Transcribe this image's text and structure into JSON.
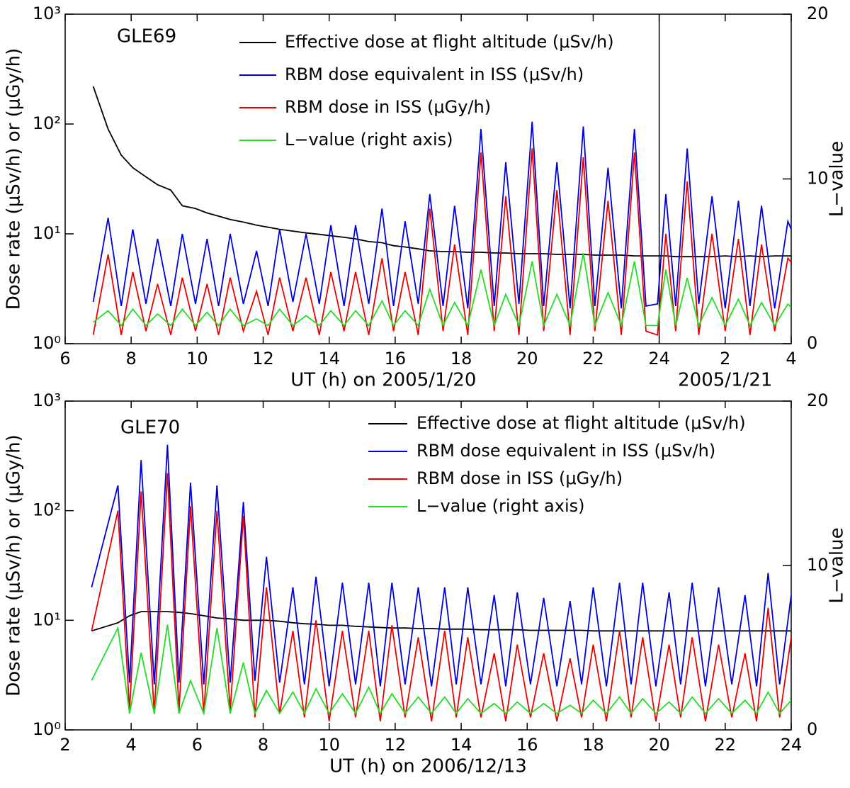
{
  "chart_data": [
    {
      "type": "line",
      "title": "GLE69",
      "xlabel": "UT (h) on 2005/1/20",
      "xlabel2": "2005/1/21",
      "ylabel": "Dose rate (μSv/h) or (μGy/h)",
      "y2label": "L−value",
      "yscale": "log",
      "xlim": [
        6,
        28
      ],
      "ylim": [
        1,
        1000
      ],
      "y2lim": [
        0,
        20
      ],
      "xticks": [
        6,
        8,
        10,
        12,
        14,
        16,
        18,
        20,
        22,
        24,
        {
          "value": 26,
          "label": "2"
        },
        {
          "value": 28,
          "label": "4"
        }
      ],
      "yticks": [
        {
          "value": 1,
          "label": "10⁰"
        },
        {
          "value": 10,
          "label": "10¹"
        },
        {
          "value": 100,
          "label": "10²"
        },
        {
          "value": 1000,
          "label": "10³"
        }
      ],
      "y2ticks": [
        0,
        10,
        20
      ],
      "divider": 24,
      "x": [
        6.85,
        7.3,
        7.7,
        8.05,
        8.45,
        8.8,
        9.2,
        9.55,
        9.95,
        10.3,
        10.65,
        11.0,
        11.4,
        11.8,
        12.15,
        12.5,
        12.9,
        13.3,
        13.7,
        14.05,
        14.45,
        14.8,
        15.2,
        15.6,
        15.95,
        16.3,
        16.7,
        17.05,
        17.45,
        17.8,
        18.2,
        18.6,
        19.0,
        19.35,
        19.75,
        20.15,
        20.5,
        20.9,
        21.3,
        21.7,
        22.05,
        22.45,
        22.85,
        23.25,
        23.6,
        23.95,
        24.2,
        24.5,
        24.85,
        25.2,
        25.6,
        26.0,
        26.4,
        26.75,
        27.1,
        27.5,
        27.9,
        28.0
      ],
      "series": [
        {
          "name": "Effective dose at flight altitude (μSv/h)",
          "color": "#000000",
          "values": [
            220,
            90,
            52,
            40,
            33,
            28,
            25,
            18,
            17,
            15.5,
            14.5,
            13.5,
            12.8,
            12,
            11.5,
            11,
            10.6,
            10.2,
            9.9,
            9.6,
            9.3,
            9.0,
            8.5,
            8.3,
            7.8,
            7.6,
            7.3,
            7.0,
            6.9,
            6.9,
            6.8,
            6.8,
            6.7,
            6.7,
            6.6,
            6.6,
            6.6,
            6.5,
            6.5,
            6.5,
            6.4,
            6.4,
            6.4,
            6.3,
            6.3,
            6.3,
            6.3,
            6.2,
            6.2,
            6.2,
            6.2,
            6.3,
            6.2,
            6.3,
            6.2,
            6.3,
            6.3,
            6.3
          ]
        },
        {
          "name": "RBM dose equivalent in ISS (μSv/h)",
          "color": "#0000dd",
          "values": [
            2.4,
            14,
            2.2,
            11,
            2.3,
            9,
            2.2,
            10,
            2.3,
            9,
            2.2,
            10,
            2.3,
            7,
            2.2,
            11,
            2.4,
            10,
            2.3,
            12,
            2.2,
            12,
            2.3,
            17,
            2.2,
            13,
            2.3,
            23,
            2.2,
            18,
            2.1,
            90,
            2.2,
            45,
            2.3,
            105,
            2.2,
            45,
            2.1,
            95,
            2.2,
            40,
            2.1,
            90,
            2.2,
            2.3,
            23,
            2.2,
            60,
            2.3,
            22,
            2.1,
            20,
            2.2,
            18,
            2.1,
            13,
            11
          ]
        },
        {
          "name": "RBM dose in ISS (μGy/h)",
          "color": "#ee0000",
          "values": [
            1.2,
            6.5,
            1.2,
            4.5,
            1.3,
            3.5,
            1.2,
            4,
            1.3,
            3.5,
            1.2,
            4,
            1.3,
            3,
            1.2,
            4,
            1.3,
            4,
            1.2,
            4.5,
            1.3,
            4.5,
            1.2,
            6,
            1.3,
            4.5,
            1.2,
            17,
            1.3,
            8,
            1.2,
            55,
            1.3,
            22,
            1.2,
            60,
            1.3,
            25,
            1.2,
            50,
            1.3,
            20,
            1.2,
            55,
            1.3,
            1.2,
            10,
            1.3,
            30,
            1.2,
            10,
            1.3,
            9,
            1.2,
            8,
            1.3,
            6,
            5.5
          ]
        },
        {
          "name": "L−value (right axis)",
          "color": "#22dd22",
          "axis": "y2",
          "values": [
            1.3,
            2.0,
            1.1,
            2.1,
            1.1,
            1.8,
            1.1,
            2.1,
            1.1,
            1.9,
            1.1,
            2.1,
            1.1,
            1.5,
            1.1,
            2.1,
            1.1,
            1.7,
            1.1,
            2.0,
            1.1,
            2.0,
            1.1,
            2.6,
            1.1,
            2.0,
            1.1,
            3.3,
            1.1,
            2.5,
            1.1,
            4.5,
            1.1,
            3.0,
            1.1,
            5.0,
            1.1,
            3.0,
            1.1,
            5.5,
            1.1,
            3.1,
            1.1,
            5.0,
            1.1,
            1.1,
            4.5,
            1.1,
            4.0,
            1.1,
            2.8,
            1.1,
            2.7,
            1.1,
            2.5,
            1.1,
            2.4,
            2.2
          ]
        }
      ]
    },
    {
      "type": "line",
      "title": "GLE70",
      "xlabel": "UT (h) on 2006/12/13",
      "ylabel": "Dose rate (μSv/h) or (μGy/h)",
      "y2label": "L−value",
      "yscale": "log",
      "xlim": [
        2,
        24
      ],
      "ylim": [
        1,
        1000
      ],
      "y2lim": [
        0,
        20
      ],
      "xticks": [
        2,
        4,
        6,
        8,
        10,
        12,
        14,
        16,
        18,
        20,
        22,
        24
      ],
      "yticks": [
        {
          "value": 1,
          "label": "10⁰"
        },
        {
          "value": 10,
          "label": "10¹"
        },
        {
          "value": 100,
          "label": "10²"
        },
        {
          "value": 1000,
          "label": "10³"
        }
      ],
      "y2ticks": [
        0,
        10,
        20
      ],
      "x": [
        2.8,
        3.6,
        3.95,
        4.3,
        4.7,
        5.1,
        5.45,
        5.8,
        6.2,
        6.6,
        7.0,
        7.4,
        7.75,
        8.1,
        8.5,
        8.9,
        9.25,
        9.6,
        10.0,
        10.4,
        10.8,
        11.2,
        11.55,
        11.9,
        12.3,
        12.7,
        13.1,
        13.5,
        13.85,
        14.2,
        14.6,
        15.0,
        15.35,
        15.7,
        16.1,
        16.5,
        16.9,
        17.3,
        17.65,
        18.0,
        18.4,
        18.8,
        19.15,
        19.5,
        19.9,
        20.3,
        20.65,
        21.0,
        21.4,
        21.8,
        22.2,
        22.6,
        22.95,
        23.3,
        23.65,
        24.0
      ],
      "series": [
        {
          "name": "Effective dose at flight altitude (μSv/h)",
          "color": "#000000",
          "values": [
            8,
            9.5,
            11,
            12,
            12,
            12,
            11.8,
            11.5,
            11,
            10.5,
            10.3,
            10,
            10,
            10,
            9.8,
            9.5,
            9.3,
            9.2,
            9,
            9,
            8.8,
            8.7,
            8.6,
            8.5,
            8.5,
            8.4,
            8.4,
            8.3,
            8.3,
            8.3,
            8.2,
            8.2,
            8.2,
            8.2,
            8.1,
            8.1,
            8.1,
            8.1,
            8.1,
            8.0,
            8.0,
            8.0,
            8.0,
            8.0,
            8.0,
            8.0,
            8.0,
            8.0,
            8.0,
            8.0,
            8.0,
            8.0,
            8.0,
            8.0,
            8.0,
            8.0
          ]
        },
        {
          "name": "RBM dose equivalent in ISS (μSv/h)",
          "color": "#0000dd",
          "values": [
            20,
            170,
            2.7,
            290,
            2.6,
            400,
            2.7,
            180,
            2.6,
            170,
            2.7,
            120,
            2.8,
            38,
            2.7,
            20,
            2.6,
            25,
            2.5,
            22,
            2.6,
            22,
            2.5,
            22,
            2.6,
            20,
            2.5,
            20,
            2.6,
            20,
            2.6,
            17,
            2.5,
            18,
            2.6,
            16,
            2.5,
            15,
            2.6,
            20,
            2.5,
            22,
            2.6,
            22,
            2.5,
            18,
            2.6,
            22,
            2.5,
            20,
            2.6,
            17,
            2.5,
            27,
            2.6,
            17
          ]
        },
        {
          "name": "RBM dose in ISS  (μGy/h)",
          "color": "#ee0000",
          "values": [
            8,
            100,
            1.5,
            150,
            1.4,
            220,
            1.5,
            110,
            1.4,
            100,
            1.5,
            90,
            1.3,
            20,
            1.4,
            8,
            1.3,
            10,
            1.2,
            8,
            1.3,
            8,
            1.2,
            9,
            1.3,
            7,
            1.2,
            8,
            1.3,
            7,
            1.3,
            5,
            1.2,
            6,
            1.3,
            5,
            1.2,
            4.5,
            1.3,
            6,
            1.2,
            8,
            1.3,
            7,
            1.2,
            6,
            1.3,
            7,
            1.2,
            6,
            1.3,
            5,
            1.2,
            13,
            1.3,
            7
          ]
        },
        {
          "name": "L−value (right axis)",
          "color": "#22dd22",
          "axis": "y2",
          "values": [
            3.0,
            6.2,
            1.0,
            4.7,
            1.0,
            6.4,
            1.0,
            3.0,
            1.0,
            6.2,
            1.0,
            4.1,
            1.0,
            2.4,
            1.0,
            2.3,
            1.0,
            2.5,
            1.0,
            2.2,
            1.0,
            2.6,
            1.0,
            2.2,
            1.0,
            2.0,
            1.0,
            2.0,
            1.0,
            1.9,
            1.0,
            1.6,
            1.0,
            1.7,
            1.0,
            1.6,
            1.0,
            1.5,
            1.0,
            1.8,
            1.0,
            2.0,
            1.0,
            1.9,
            1.0,
            1.7,
            1.0,
            2.0,
            1.0,
            1.9,
            1.0,
            1.8,
            1.0,
            2.3,
            1.0,
            1.8
          ]
        }
      ]
    }
  ]
}
